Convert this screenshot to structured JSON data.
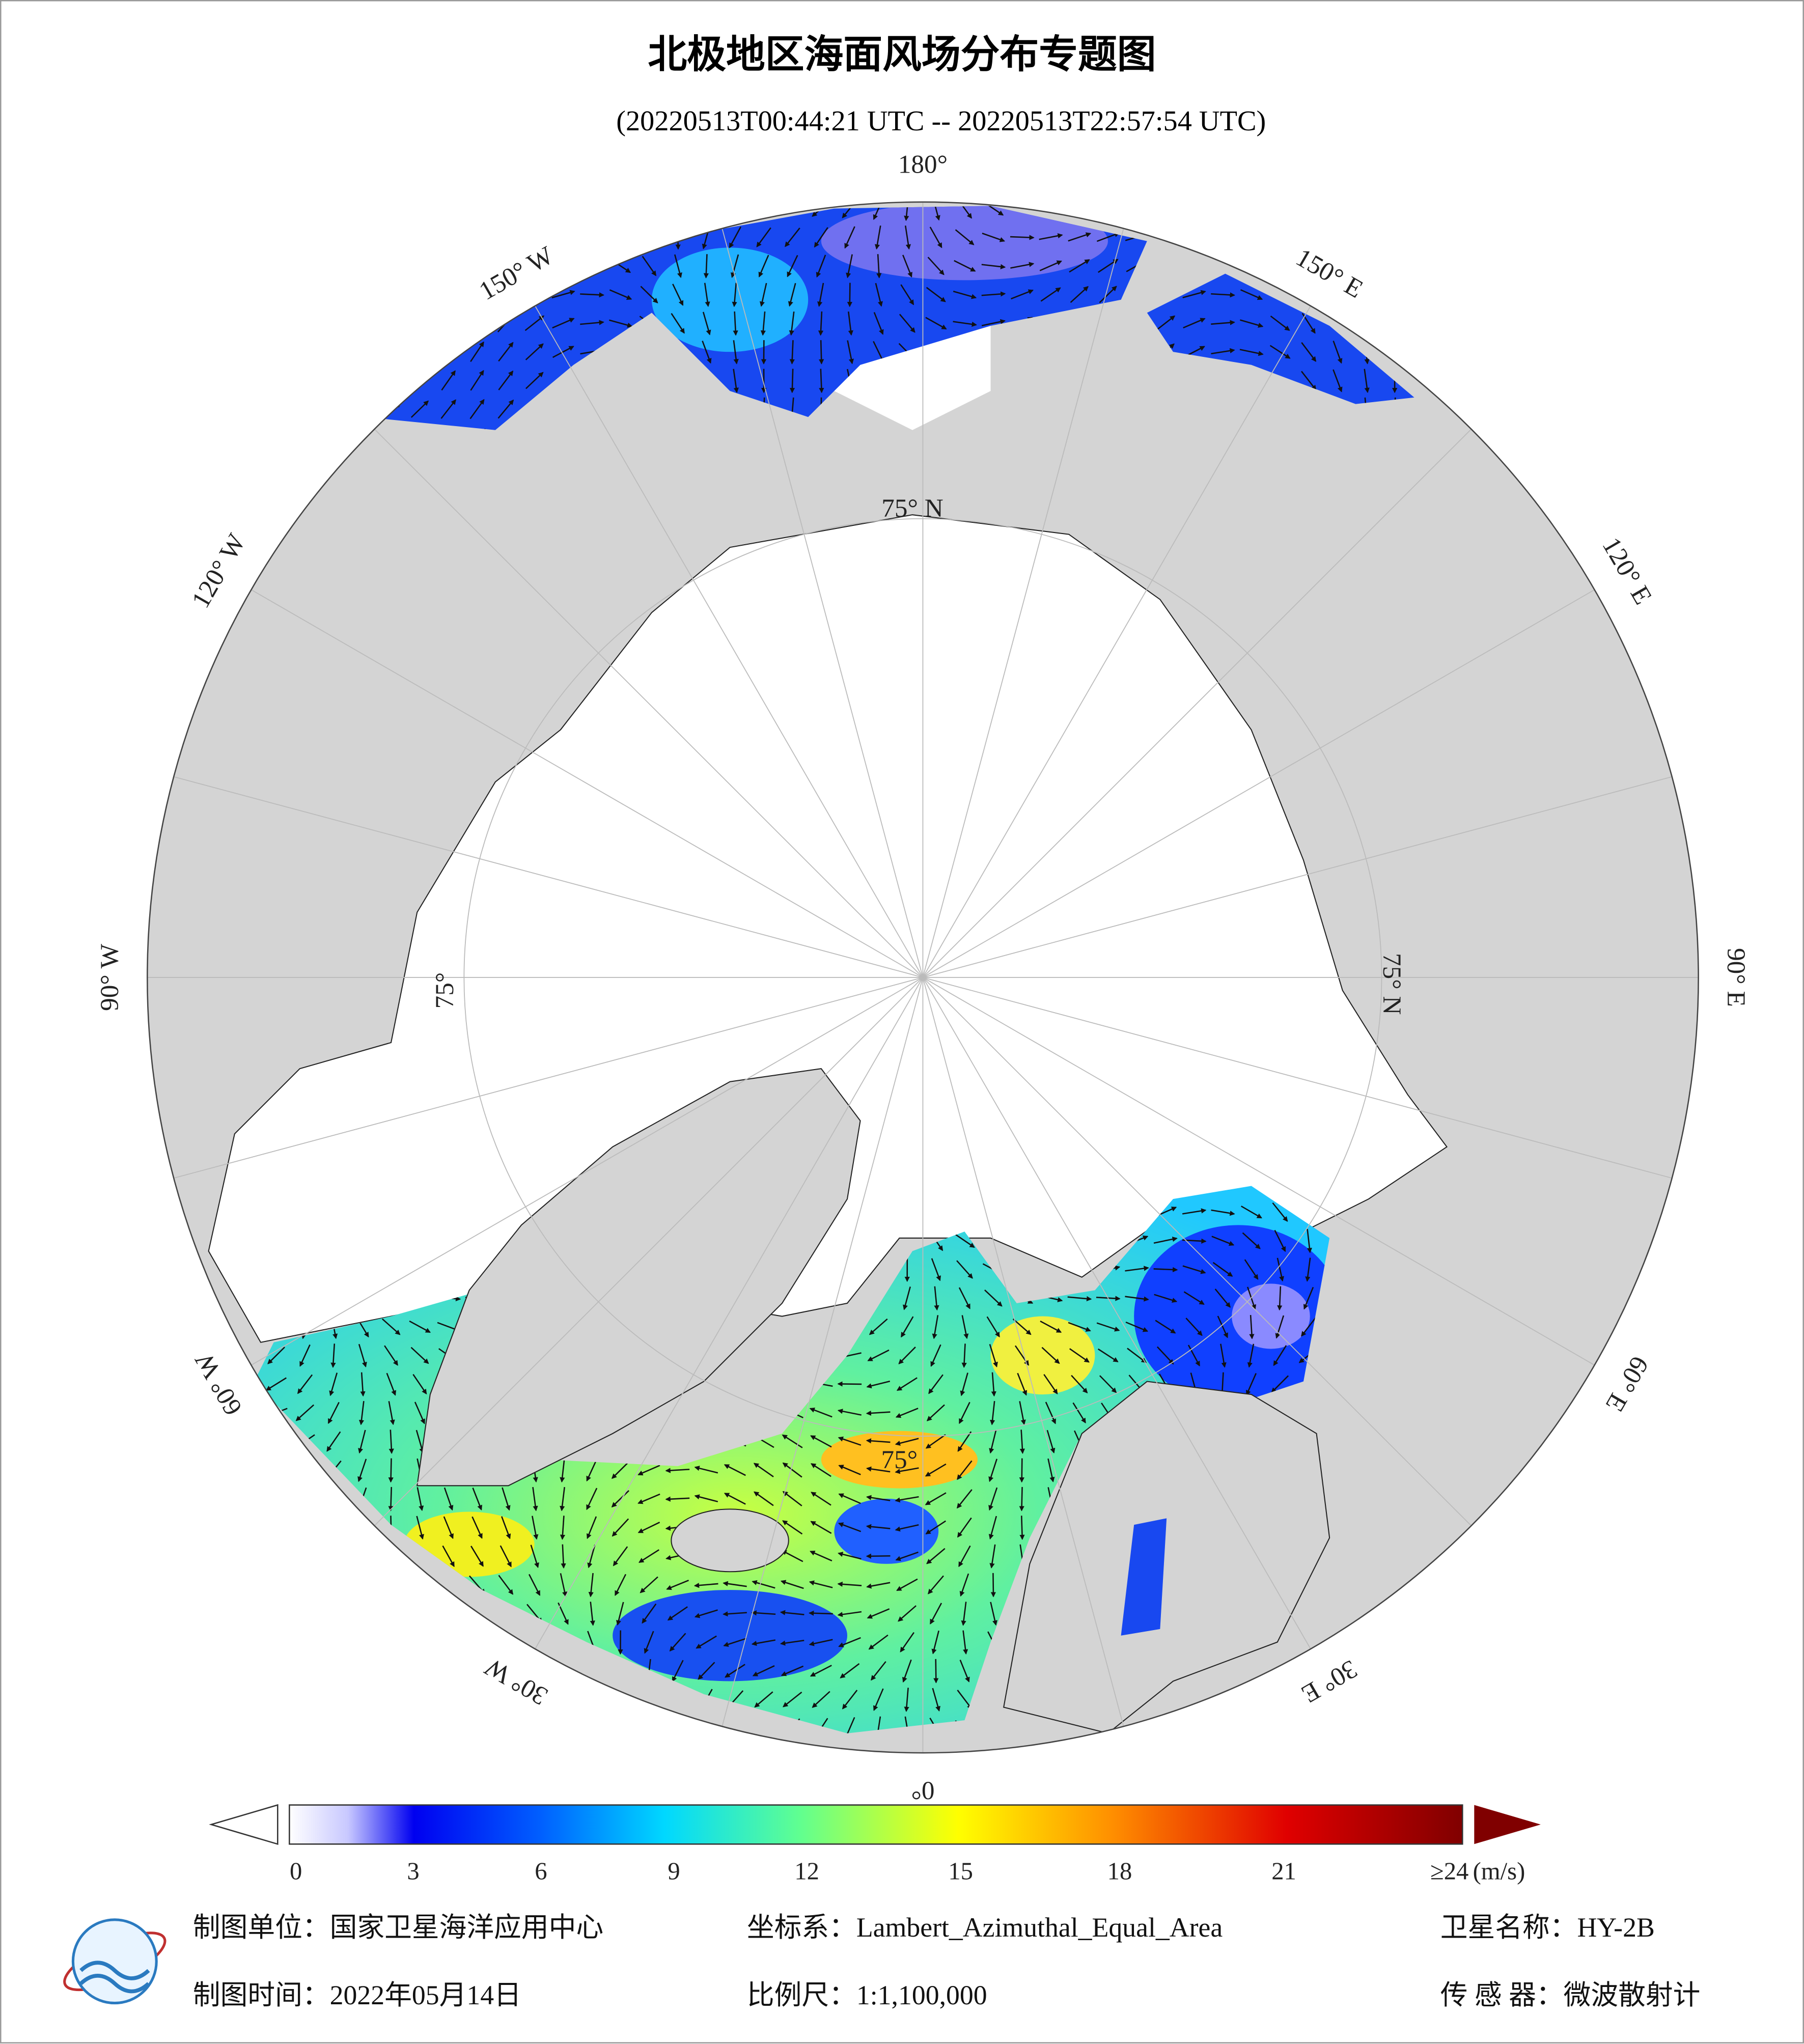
{
  "header": {
    "title": "北极地区海面风场分布专题图",
    "subtitle": "(20220513T00:44:21 UTC -- 20220513T22:57:54 UTC)"
  },
  "map": {
    "longitude_labels": [
      "180°",
      "150° W",
      "120° W",
      "90° W",
      "60° W",
      "30° W",
      "0°",
      "30° E",
      "60° E",
      "90° E",
      "120° E",
      "150° E"
    ],
    "latitude_labels": [
      "75° N",
      "75° N",
      "75°",
      "75°"
    ]
  },
  "colorbar": {
    "ticks": [
      0,
      3,
      6,
      9,
      12,
      15,
      18,
      21,
      {
        "value": 24,
        "label": "≥24"
      }
    ],
    "unit": "(m/s)"
  },
  "footer": {
    "producer": "制图单位：国家卫星海洋应用中心",
    "projection": "坐标系：Lambert_Azimuthal_Equal_Area",
    "satellite": "卫星名称：HY-2B",
    "date": "制图时间：2022年05月14日",
    "scale": "比例尺：1:1,100,000",
    "sensor": "传 感 器：微波散射计"
  }
}
